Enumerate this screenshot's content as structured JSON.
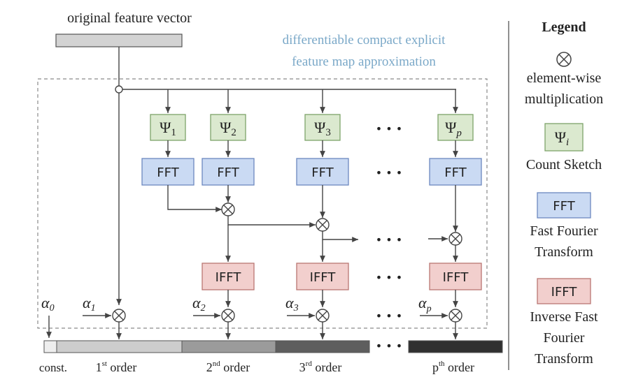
{
  "title": "original feature vector",
  "subtitle_line1": "differentiable compact explicit",
  "subtitle_line2": "feature map approximation",
  "psi": {
    "prefix": "Ψ",
    "subs": [
      "1",
      "2",
      "3",
      "p"
    ]
  },
  "fft_label": "FFT",
  "ifft_label": "IFFT",
  "ellipsis": "• • •",
  "alphas": {
    "prefix": "α",
    "subs": [
      "0",
      "1",
      "2",
      "3",
      "p"
    ]
  },
  "bottom_labels": {
    "const": "const.",
    "first": {
      "num": "1",
      "sup": "st",
      "word": " order"
    },
    "second": {
      "num": "2",
      "sup": "nd",
      "word": " order"
    },
    "third": {
      "num": "3",
      "sup": "rd",
      "word": " order"
    },
    "pth": {
      "num": "p",
      "sup": "th",
      "word": " order"
    }
  },
  "legend": {
    "title": "Legend",
    "mult_line1": "element-wise",
    "mult_line2": "multiplication",
    "psi_sub": "i",
    "count_sketch": "Count Sketch",
    "fft_line1": "Fast Fourier",
    "fft_line2": "Transform",
    "ifft_line1": "Inverse Fast",
    "ifft_line2": "Fourier",
    "ifft_line3": "Transform"
  },
  "colors": {
    "psi_fill": "#dbe9cf",
    "psi_stroke": "#7ea36a",
    "fft_fill": "#cadaf3",
    "fft_stroke": "#6c88bf",
    "ifft_fill": "#f2cfcd",
    "ifft_stroke": "#b97672",
    "subtitle": "#7aa8c8",
    "bar_input": "#d3d3d3",
    "seg_const": "#eeeeee",
    "seg_first": "#cdcdcd",
    "seg_second": "#9b9b9b",
    "seg_third": "#5e5e5e",
    "seg_pth": "#303030"
  }
}
